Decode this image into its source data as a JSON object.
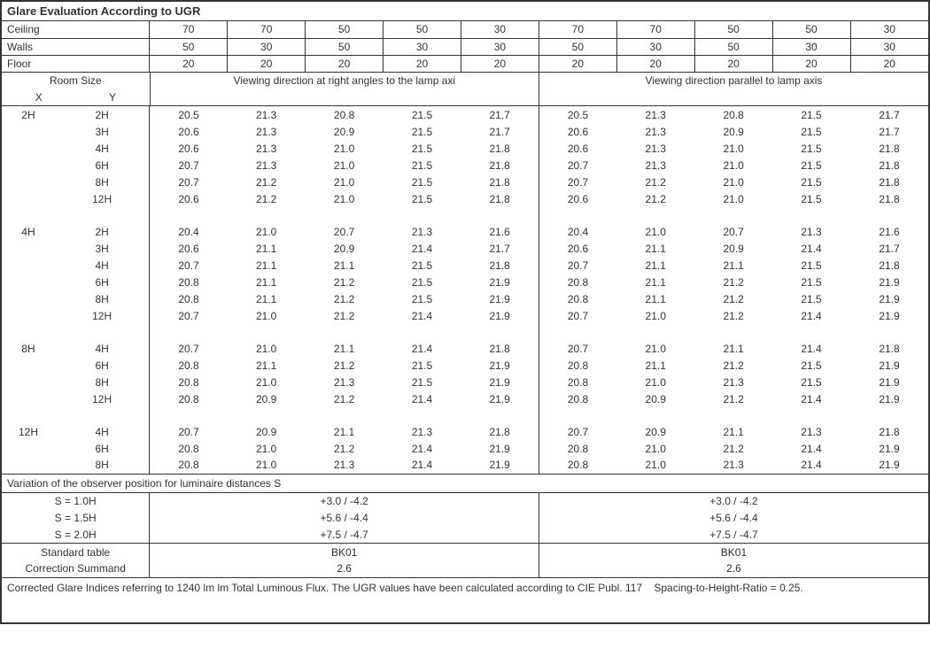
{
  "title": "Glare Evaluation According to UGR",
  "header": {
    "labels": {
      "ceiling": "Ceiling",
      "walls": "Walls",
      "floor": "Floor"
    },
    "ceiling": [
      "70",
      "70",
      "50",
      "50",
      "30",
      "70",
      "70",
      "50",
      "50",
      "30"
    ],
    "walls": [
      "50",
      "30",
      "50",
      "30",
      "30",
      "50",
      "30",
      "50",
      "30",
      "30"
    ],
    "floor": [
      "20",
      "20",
      "20",
      "20",
      "20",
      "20",
      "20",
      "20",
      "20",
      "20"
    ]
  },
  "room_size_label": "Room Size",
  "x_label": "X",
  "y_label": "Y",
  "view_right": "Viewing direction at right angles to the lamp axi",
  "view_parallel": "Viewing direction parallel to lamp axis",
  "groups": [
    {
      "x": "2H",
      "rows": [
        {
          "y": "2H",
          "l": [
            "20.5",
            "21.3",
            "20.8",
            "21.5",
            "21.7"
          ],
          "r": [
            "20.5",
            "21.3",
            "20.8",
            "21.5",
            "21.7"
          ]
        },
        {
          "y": "3H",
          "l": [
            "20.6",
            "21.3",
            "20.9",
            "21.5",
            "21.7"
          ],
          "r": [
            "20.6",
            "21.3",
            "20.9",
            "21.5",
            "21.7"
          ]
        },
        {
          "y": "4H",
          "l": [
            "20.6",
            "21.3",
            "21.0",
            "21.5",
            "21.8"
          ],
          "r": [
            "20.6",
            "21.3",
            "21.0",
            "21.5",
            "21.8"
          ]
        },
        {
          "y": "6H",
          "l": [
            "20.7",
            "21.3",
            "21.0",
            "21.5",
            "21.8"
          ],
          "r": [
            "20.7",
            "21.3",
            "21.0",
            "21.5",
            "21.8"
          ]
        },
        {
          "y": "8H",
          "l": [
            "20.7",
            "21.2",
            "21.0",
            "21.5",
            "21.8"
          ],
          "r": [
            "20.7",
            "21.2",
            "21.0",
            "21.5",
            "21.8"
          ]
        },
        {
          "y": "12H",
          "l": [
            "20.6",
            "21.2",
            "21.0",
            "21.5",
            "21.8"
          ],
          "r": [
            "20.6",
            "21.2",
            "21.0",
            "21.5",
            "21.8"
          ]
        }
      ]
    },
    {
      "x": "4H",
      "rows": [
        {
          "y": "2H",
          "l": [
            "20.4",
            "21.0",
            "20.7",
            "21.3",
            "21.6"
          ],
          "r": [
            "20.4",
            "21.0",
            "20.7",
            "21.3",
            "21.6"
          ]
        },
        {
          "y": "3H",
          "l": [
            "20.6",
            "21.1",
            "20.9",
            "21.4",
            "21.7"
          ],
          "r": [
            "20.6",
            "21.1",
            "20.9",
            "21.4",
            "21.7"
          ]
        },
        {
          "y": "4H",
          "l": [
            "20.7",
            "21.1",
            "21.1",
            "21.5",
            "21.8"
          ],
          "r": [
            "20.7",
            "21.1",
            "21.1",
            "21.5",
            "21.8"
          ]
        },
        {
          "y": "6H",
          "l": [
            "20.8",
            "21.1",
            "21.2",
            "21.5",
            "21.9"
          ],
          "r": [
            "20.8",
            "21.1",
            "21.2",
            "21.5",
            "21.9"
          ]
        },
        {
          "y": "8H",
          "l": [
            "20.8",
            "21.1",
            "21.2",
            "21.5",
            "21.9"
          ],
          "r": [
            "20.8",
            "21.1",
            "21.2",
            "21.5",
            "21.9"
          ]
        },
        {
          "y": "12H",
          "l": [
            "20.7",
            "21.0",
            "21.2",
            "21.4",
            "21.9"
          ],
          "r": [
            "20.7",
            "21.0",
            "21.2",
            "21.4",
            "21.9"
          ]
        }
      ]
    },
    {
      "x": "8H",
      "rows": [
        {
          "y": "4H",
          "l": [
            "20.7",
            "21.0",
            "21.1",
            "21.4",
            "21.8"
          ],
          "r": [
            "20.7",
            "21.0",
            "21.1",
            "21.4",
            "21.8"
          ]
        },
        {
          "y": "6H",
          "l": [
            "20.8",
            "21.1",
            "21.2",
            "21.5",
            "21.9"
          ],
          "r": [
            "20.8",
            "21.1",
            "21.2",
            "21.5",
            "21.9"
          ]
        },
        {
          "y": "8H",
          "l": [
            "20.8",
            "21.0",
            "21.3",
            "21.5",
            "21.9"
          ],
          "r": [
            "20.8",
            "21.0",
            "21.3",
            "21.5",
            "21.9"
          ]
        },
        {
          "y": "12H",
          "l": [
            "20.8",
            "20.9",
            "21.2",
            "21.4",
            "21.9"
          ],
          "r": [
            "20.8",
            "20.9",
            "21.2",
            "21.4",
            "21.9"
          ]
        }
      ]
    },
    {
      "x": "12H",
      "rows": [
        {
          "y": "4H",
          "l": [
            "20.7",
            "20.9",
            "21.1",
            "21.3",
            "21.8"
          ],
          "r": [
            "20.7",
            "20.9",
            "21.1",
            "21.3",
            "21.8"
          ]
        },
        {
          "y": "6H",
          "l": [
            "20.8",
            "21.0",
            "21.2",
            "21.4",
            "21.9"
          ],
          "r": [
            "20.8",
            "21.0",
            "21.2",
            "21.4",
            "21.9"
          ]
        },
        {
          "y": "8H",
          "l": [
            "20.8",
            "21.0",
            "21.3",
            "21.4",
            "21.9"
          ],
          "r": [
            "20.8",
            "21.0",
            "21.3",
            "21.4",
            "21.9"
          ]
        }
      ]
    }
  ],
  "variation_title": "Variation of the observer position for luminaire distances S",
  "variation": [
    {
      "s": "S = 1.0H",
      "l": "+3.0 / -4.2",
      "r": "+3.0 / -4.2"
    },
    {
      "s": "S = 1.5H",
      "l": "+5.6 / -4.4",
      "r": "+5.6 / -4.4"
    },
    {
      "s": "S = 2.0H",
      "l": "+7.5 / -4.7",
      "r": "+7.5 / -4.7"
    }
  ],
  "standard_table_label": "Standard table",
  "standard_table": {
    "l": "BK01",
    "r": "BK01"
  },
  "correction_label": "Correction Summand",
  "correction": {
    "l": "2.6",
    "r": "2.6"
  },
  "footnote": "Corrected Glare Indices referring to 1240 lm lm Total Luminous Flux. The UGR values have been calculated according to CIE Publ. 117    Spacing-to-Height-Ratio = 0.25.",
  "colors": {
    "border": "#333333",
    "text": "#333333",
    "background": "#ffffff"
  }
}
